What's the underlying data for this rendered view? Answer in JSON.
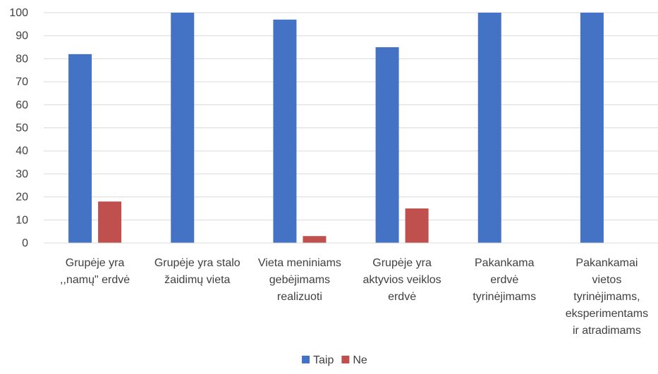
{
  "chart_data": {
    "type": "bar",
    "title": "",
    "xlabel": "",
    "ylabel": "",
    "ylim": [
      0,
      100
    ],
    "yticks": [
      0,
      10,
      20,
      30,
      40,
      50,
      60,
      70,
      80,
      90,
      100
    ],
    "grid": true,
    "legend_position": "bottom",
    "categories": [
      [
        "Grupėje yra",
        ",,namų\" erdvė"
      ],
      [
        "Grupėje yra stalo",
        "žaidimų vieta"
      ],
      [
        "Vieta meniniams",
        "gebėjimams",
        "realizuoti"
      ],
      [
        "Grupėje yra",
        "aktyvios veiklos",
        "erdvė"
      ],
      [
        "Pakankama",
        "erdvė",
        "tyrinėjimams"
      ],
      [
        "Pakankamai",
        "vietos",
        "tyrinėjimams,",
        "eksperimentams",
        "ir atradimams"
      ]
    ],
    "series": [
      {
        "name": "Taip",
        "color": "#4472C4",
        "values": [
          82,
          100,
          97,
          85,
          100,
          100
        ]
      },
      {
        "name": "Ne",
        "color": "#C0504D",
        "values": [
          18,
          0,
          3,
          15,
          0,
          0
        ]
      }
    ]
  }
}
